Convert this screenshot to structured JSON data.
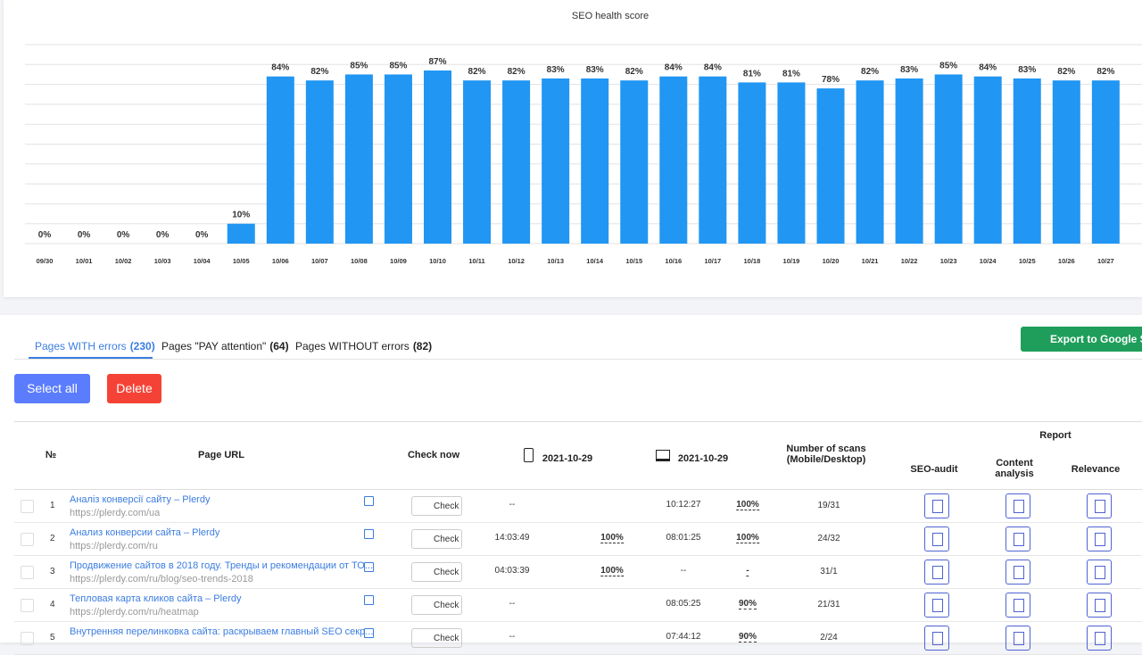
{
  "chart_data": {
    "type": "bar",
    "title": "SEO health score",
    "categories": [
      "09/30",
      "10/01",
      "10/02",
      "10/03",
      "10/04",
      "10/05",
      "10/06",
      "10/07",
      "10/08",
      "10/09",
      "10/10",
      "10/11",
      "10/12",
      "10/13",
      "10/14",
      "10/15",
      "10/16",
      "10/17",
      "10/18",
      "10/19",
      "10/20",
      "10/21",
      "10/22",
      "10/23",
      "10/24",
      "10/25",
      "10/26",
      "10/27"
    ],
    "values": [
      0,
      0,
      0,
      0,
      0,
      10,
      84,
      82,
      85,
      85,
      87,
      82,
      82,
      83,
      83,
      82,
      84,
      84,
      81,
      81,
      78,
      82,
      83,
      85,
      84,
      83,
      82,
      82
    ],
    "value_labels": [
      "0%",
      "0%",
      "0%",
      "0%",
      "0%",
      "10%",
      "84%",
      "82%",
      "85%",
      "85%",
      "87%",
      "82%",
      "82%",
      "83%",
      "83%",
      "82%",
      "84%",
      "84%",
      "81%",
      "81%",
      "78%",
      "82%",
      "83%",
      "85%",
      "84%",
      "83%",
      "82%",
      "82%"
    ],
    "color": "#2196f3",
    "ylim": [
      0,
      100
    ],
    "yticks": [
      0,
      10,
      20,
      30,
      40,
      50,
      60,
      70,
      80,
      90,
      100
    ],
    "grid": true
  },
  "tabs": [
    {
      "label": "Pages WITH errors",
      "count": "(230)"
    },
    {
      "label": "Pages \"PAY attention\"",
      "count": "(64)"
    },
    {
      "label": "Pages WITHOUT errors",
      "count": "(82)"
    }
  ],
  "export_button": "Export to Google Sp",
  "select_all": "Select all",
  "delete": "Delete",
  "table": {
    "headers": {
      "number": "№",
      "page_url": "Page URL",
      "check_now": "Check now",
      "mobile_date": "2021-10-29",
      "desktop_date": "2021-10-29",
      "scans": "Number of scans (Mobile/Desktop)",
      "report": "Report",
      "seo_audit": "SEO-audit",
      "content_analysis": "Content analysis",
      "relevance": "Relevance"
    },
    "rows": [
      {
        "n": "1",
        "title": "Аналіз конверсії сайту – Plerdy",
        "url": "https://plerdy.com/ua",
        "check": "Check",
        "mobile_time": "--",
        "mobile_score": null,
        "desktop_time": "10:12:27",
        "desktop_score": "100%",
        "scans": "19/31"
      },
      {
        "n": "2",
        "title": "Анализ конверсии сайта – Plerdy",
        "url": "https://plerdy.com/ru",
        "check": "Check",
        "mobile_time": "14:03:49",
        "mobile_score": "100%",
        "desktop_time": "08:01:25",
        "desktop_score": "100%",
        "scans": "24/32"
      },
      {
        "n": "3",
        "title": "Продвижение сайтов в 2018 году. Тренды и рекомендации от ТО...",
        "url": "https://plerdy.com/ru/blog/seo-trends-2018",
        "check": "Check",
        "mobile_time": "04:03:39",
        "mobile_score": "100%",
        "desktop_time": "--",
        "desktop_score": "-",
        "scans": "31/1"
      },
      {
        "n": "4",
        "title": "Тепловая карта кликов сайта – Plerdy",
        "url": "https://plerdy.com/ru/heatmap",
        "check": "Check",
        "mobile_time": "--",
        "mobile_score": null,
        "desktop_time": "08:05:25",
        "desktop_score": "90%",
        "scans": "21/31"
      },
      {
        "n": "5",
        "title": "Внутренняя перелинковка сайта: раскрываем главный SEO секр...",
        "url": null,
        "check": "Check",
        "mobile_time": "--",
        "mobile_score": null,
        "desktop_time": "07:44:12",
        "desktop_score": "90%",
        "scans": "2/24"
      }
    ]
  }
}
